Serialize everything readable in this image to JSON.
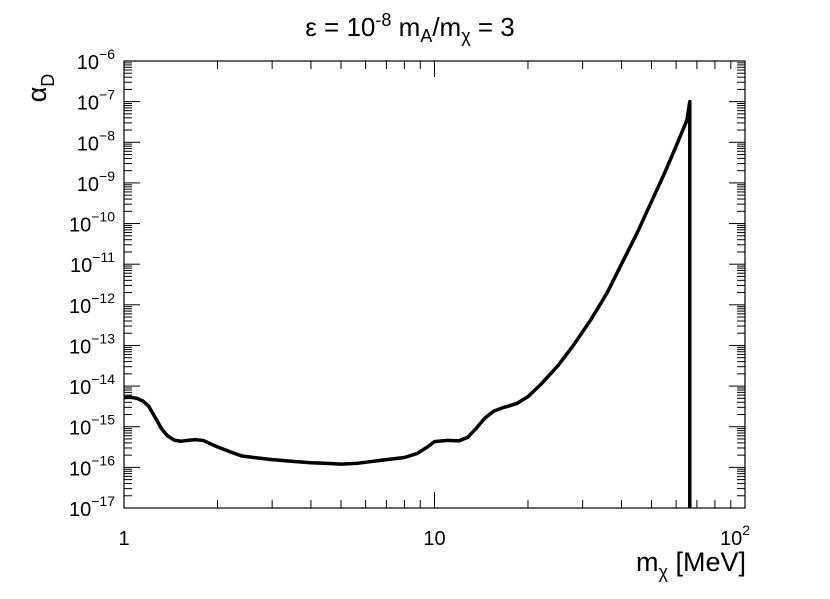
{
  "chart_data": {
    "type": "line",
    "title": {
      "epsilon_symbol": "ε",
      "epsilon_prefix": " = 10",
      "epsilon_exp": "-8",
      "ratio_m1": "m",
      "ratio_sub1": "A",
      "ratio_slash": "/m",
      "ratio_sub2": "χ",
      "ratio_value": " = 3"
    },
    "xlabel": {
      "base": "m",
      "sub": "χ",
      "unit": " [MeV]"
    },
    "ylabel": {
      "base": "α",
      "sub": "D"
    },
    "x_scale": "log",
    "y_scale": "log",
    "xlim": [
      1,
      100
    ],
    "ylim": [
      1e-17,
      1e-06
    ],
    "x_ticks": [
      {
        "value": 1,
        "label": "1"
      },
      {
        "value": 10,
        "label": "10"
      },
      {
        "value": 100,
        "base": "10",
        "exp": "2"
      }
    ],
    "y_ticks": [
      {
        "value": 1e-06,
        "base": "10",
        "exp": "−6"
      },
      {
        "value": 1e-07,
        "base": "10",
        "exp": "−7"
      },
      {
        "value": 1e-08,
        "base": "10",
        "exp": "−8"
      },
      {
        "value": 1e-09,
        "base": "10",
        "exp": "−9"
      },
      {
        "value": 1e-10,
        "base": "10",
        "exp": "−10"
      },
      {
        "value": 1e-11,
        "base": "10",
        "exp": "−11"
      },
      {
        "value": 1e-12,
        "base": "10",
        "exp": "−12"
      },
      {
        "value": 1e-13,
        "base": "10",
        "exp": "−13"
      },
      {
        "value": 1e-14,
        "base": "10",
        "exp": "−14"
      },
      {
        "value": 1e-15,
        "base": "10",
        "exp": "−15"
      },
      {
        "value": 1e-16,
        "base": "10",
        "exp": "−16"
      },
      {
        "value": 1e-17,
        "base": "10",
        "exp": "−17"
      }
    ],
    "grid": false,
    "legend": "none",
    "line_color": "#000000",
    "series": [
      {
        "x": [
          1.0,
          1.05,
          1.1,
          1.15,
          1.2,
          1.26,
          1.32,
          1.38,
          1.45,
          1.52,
          1.6,
          1.7,
          1.8,
          1.9,
          2.0,
          2.2,
          2.4,
          2.7,
          3.0,
          3.5,
          4.0,
          4.5,
          5.0,
          5.6,
          6.3,
          7.0,
          8.0,
          8.8,
          9.5,
          10.0,
          11.0,
          12.0,
          12.8,
          13.6,
          14.5,
          15.5,
          16.5,
          17.5,
          18.5,
          20.0,
          22.0,
          25.0,
          28.0,
          32.0,
          36.0,
          40.0,
          45.0,
          50.0,
          55.0,
          60.0,
          65.0,
          66.4,
          66.4
        ],
        "y": [
          5.2e-15,
          5.3e-15,
          5e-15,
          4.3e-15,
          3.2e-15,
          1.7e-15,
          9e-16,
          6e-16,
          4.7e-16,
          4.4e-16,
          4.6e-16,
          4.8e-16,
          4.6e-16,
          3.8e-16,
          3.2e-16,
          2.4e-16,
          1.9e-16,
          1.7e-16,
          1.55e-16,
          1.4e-16,
          1.3e-16,
          1.25e-16,
          1.2e-16,
          1.25e-16,
          1.4e-16,
          1.55e-16,
          1.75e-16,
          2.2e-16,
          3.2e-16,
          4.3e-16,
          4.6e-16,
          4.5e-16,
          5.5e-16,
          9e-16,
          1.6e-15,
          2.4e-15,
          2.9e-15,
          3.3e-15,
          3.8e-15,
          5.5e-15,
          1.1e-14,
          3.2e-14,
          1e-13,
          4.5e-13,
          2e-12,
          1e-11,
          6e-11,
          3.5e-10,
          1.7e-09,
          8e-09,
          3.5e-08,
          1e-07,
          1e-17
        ]
      }
    ]
  }
}
